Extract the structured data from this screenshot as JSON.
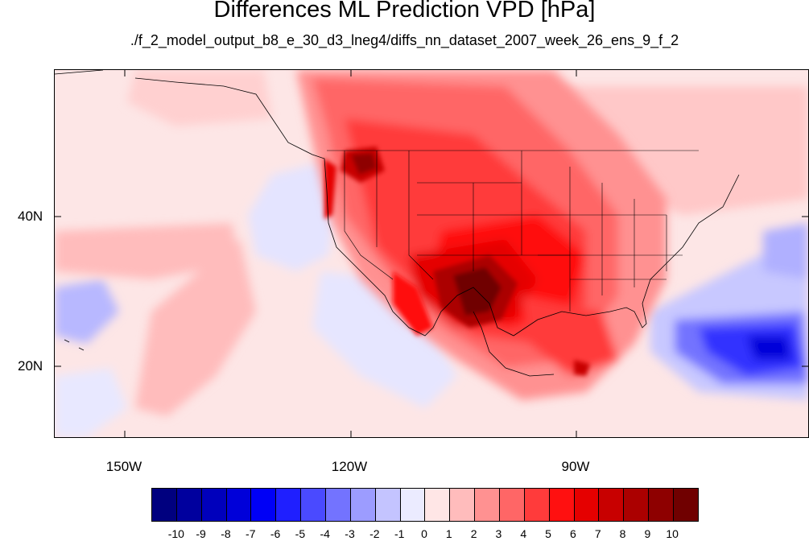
{
  "title": "Differences ML Prediction VPD [hPa]",
  "subtitle": "./f_2_model_output_b8_e_30_d3_lneg4/diffs_nn_dataset_2007_week_26_ens_9_f_2",
  "map": {
    "latitude_labels": [
      "40N",
      "20N"
    ],
    "longitude_labels": [
      "150W",
      "120W",
      "90W"
    ],
    "extent": {
      "lon": [
        -160,
        -60
      ],
      "lat": [
        11,
        59
      ]
    },
    "projection": "cylindrical-equidistant",
    "background_value_color": "#fde6e6"
  },
  "colorbar": {
    "tick_labels": [
      "-10",
      "-9",
      "-8",
      "-7",
      "-6",
      "-5",
      "-4",
      "-3",
      "-2",
      "-1",
      "0",
      "1",
      "2",
      "3",
      "4",
      "5",
      "6",
      "7",
      "8",
      "9",
      "10"
    ],
    "colors": [
      "#00007f",
      "#00009e",
      "#0000bc",
      "#0000d9",
      "#0000f6",
      "#1f1fff",
      "#4a4aff",
      "#7373ff",
      "#9c9cff",
      "#c4c4ff",
      "#ebebff",
      "#ffe6e6",
      "#ffbcbc",
      "#ff9191",
      "#ff6666",
      "#ff3b3b",
      "#ff1010",
      "#e50000",
      "#c80000",
      "#ab0000",
      "#8e0000",
      "#700000"
    ]
  }
}
